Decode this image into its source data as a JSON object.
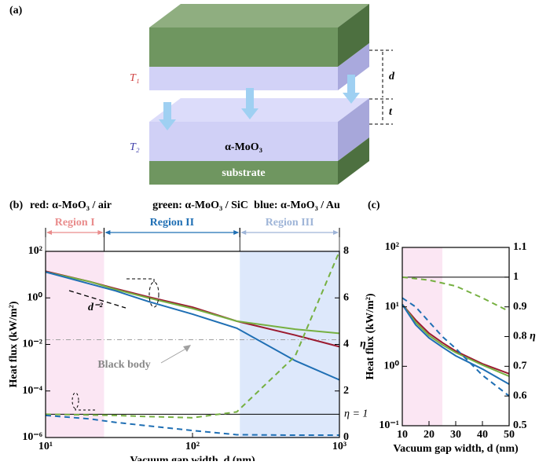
{
  "panel_a": {
    "label": "(a)",
    "t1": "T₁",
    "t2": "T₂",
    "d": "d",
    "t": "t",
    "layer": "α-MoO₃",
    "substrate": "substrate"
  },
  "chart_data": [
    {
      "type": "line",
      "panel": "(b)",
      "headers": [
        "red: α-MoO₃ / air",
        "green: α-MoO₃ / SiC",
        "blue: α-MoO₃ / Au"
      ],
      "x_label": "Vacuum gap width, d (nm)",
      "y_label": "Heat flux (kW/m²)",
      "y2_label": "η",
      "x_scale": "log",
      "y_scale": "log",
      "x": [
        10,
        20,
        30,
        50,
        100,
        200,
        500,
        1000
      ],
      "xlim": [
        10,
        1000
      ],
      "xticks": [
        {
          "value": 10,
          "label": "10¹"
        },
        {
          "value": 100,
          "label": "10²"
        },
        {
          "value": 1000,
          "label": "10³"
        }
      ],
      "ylim": [
        1e-06,
        100
      ],
      "yticks": [
        {
          "value": 1e-06,
          "label": "10⁻⁶"
        },
        {
          "value": 0.0001,
          "label": "10⁻⁴"
        },
        {
          "value": 0.01,
          "label": "10⁻²"
        },
        {
          "value": 1,
          "label": "10⁰"
        },
        {
          "value": 100,
          "label": "10²"
        }
      ],
      "y2lim": [
        0,
        8
      ],
      "y2ticks": [
        0,
        2,
        4,
        6,
        8
      ],
      "series": [
        {
          "color": "#9b1b30",
          "values": [
            14,
            5,
            2.5,
            1.1,
            0.4,
            0.1,
            0.025,
            0.008
          ]
        },
        {
          "color": "#76b041",
          "values": [
            13,
            5,
            2.3,
            1.0,
            0.35,
            0.1,
            0.045,
            0.03
          ]
        },
        {
          "color": "#1f6fb4",
          "values": [
            13,
            4,
            2,
            0.7,
            0.2,
            0.05,
            0.002,
            0.0003
          ]
        },
        {
          "color": "#76b041",
          "style": "dashed",
          "axis": "y2",
          "values": [
            1,
            0.97,
            0.95,
            0.9,
            0.85,
            1.1,
            3.5,
            8
          ]
        },
        {
          "color": "#1f6fb4",
          "style": "dashed",
          "axis": "y2",
          "values": [
            0.95,
            0.8,
            0.65,
            0.5,
            0.3,
            0.12,
            0.1,
            0.1
          ]
        }
      ],
      "y2_ref": {
        "value": 1,
        "label": "η = 1"
      },
      "black_body": {
        "label": "Black body",
        "value": 0.016,
        "color": "#a0a0a0"
      },
      "slope_label": "d⁻²",
      "regions": [
        {
          "label": "Region I",
          "range": [
            10,
            25
          ],
          "color": "#e98c8c",
          "fill": "#fbe6f3"
        },
        {
          "label": "Region II",
          "range": [
            25,
            210
          ],
          "color": "#1f6fb4",
          "fill": "none"
        },
        {
          "label": "Region III",
          "range": [
            210,
            1000
          ],
          "color": "#9fb5d8",
          "fill": "#dde8fb"
        }
      ]
    },
    {
      "type": "line",
      "panel": "(c)",
      "x_label": "Vacuum gap width, d (nm)",
      "y_label": "Heat flux (kW/m²)",
      "y2_label": "η",
      "x_scale": "linear",
      "y_scale": "log",
      "x": [
        10,
        15,
        20,
        25,
        30,
        40,
        50
      ],
      "xlim": [
        10,
        50
      ],
      "xticks": [
        10,
        20,
        30,
        40,
        50
      ],
      "ylim": [
        0.1,
        100
      ],
      "yticks": [
        {
          "value": 0.1,
          "label": "10⁻¹"
        },
        {
          "value": 1,
          "label": "10⁰"
        },
        {
          "value": 10,
          "label": "10¹"
        },
        {
          "value": 100,
          "label": "10²"
        }
      ],
      "y2lim": [
        0.5,
        1.1
      ],
      "y2ticks": [
        0.5,
        0.6,
        0.7,
        0.8,
        0.9,
        1,
        1.1
      ],
      "series": [
        {
          "color": "#9b1b30",
          "values": [
            11,
            6,
            3.6,
            2.5,
            1.8,
            1.1,
            0.75
          ]
        },
        {
          "color": "#76b041",
          "values": [
            11,
            5.5,
            3.3,
            2.3,
            1.7,
            1.05,
            0.68
          ]
        },
        {
          "color": "#1f6fb4",
          "values": [
            11,
            5,
            3,
            2.1,
            1.5,
            0.9,
            0.5
          ]
        },
        {
          "color": "#76b041",
          "style": "dashed",
          "axis": "y2",
          "values": [
            1,
            0.995,
            0.99,
            0.98,
            0.97,
            0.93,
            0.885
          ]
        },
        {
          "color": "#1f6fb4",
          "style": "dashed",
          "axis": "y2",
          "values": [
            0.93,
            0.9,
            0.85,
            0.8,
            0.76,
            0.67,
            0.6
          ]
        }
      ],
      "y2_ref": {
        "value": 1
      },
      "regions": [
        {
          "range": [
            10,
            25
          ],
          "fill": "#fbe6f3"
        }
      ]
    }
  ]
}
